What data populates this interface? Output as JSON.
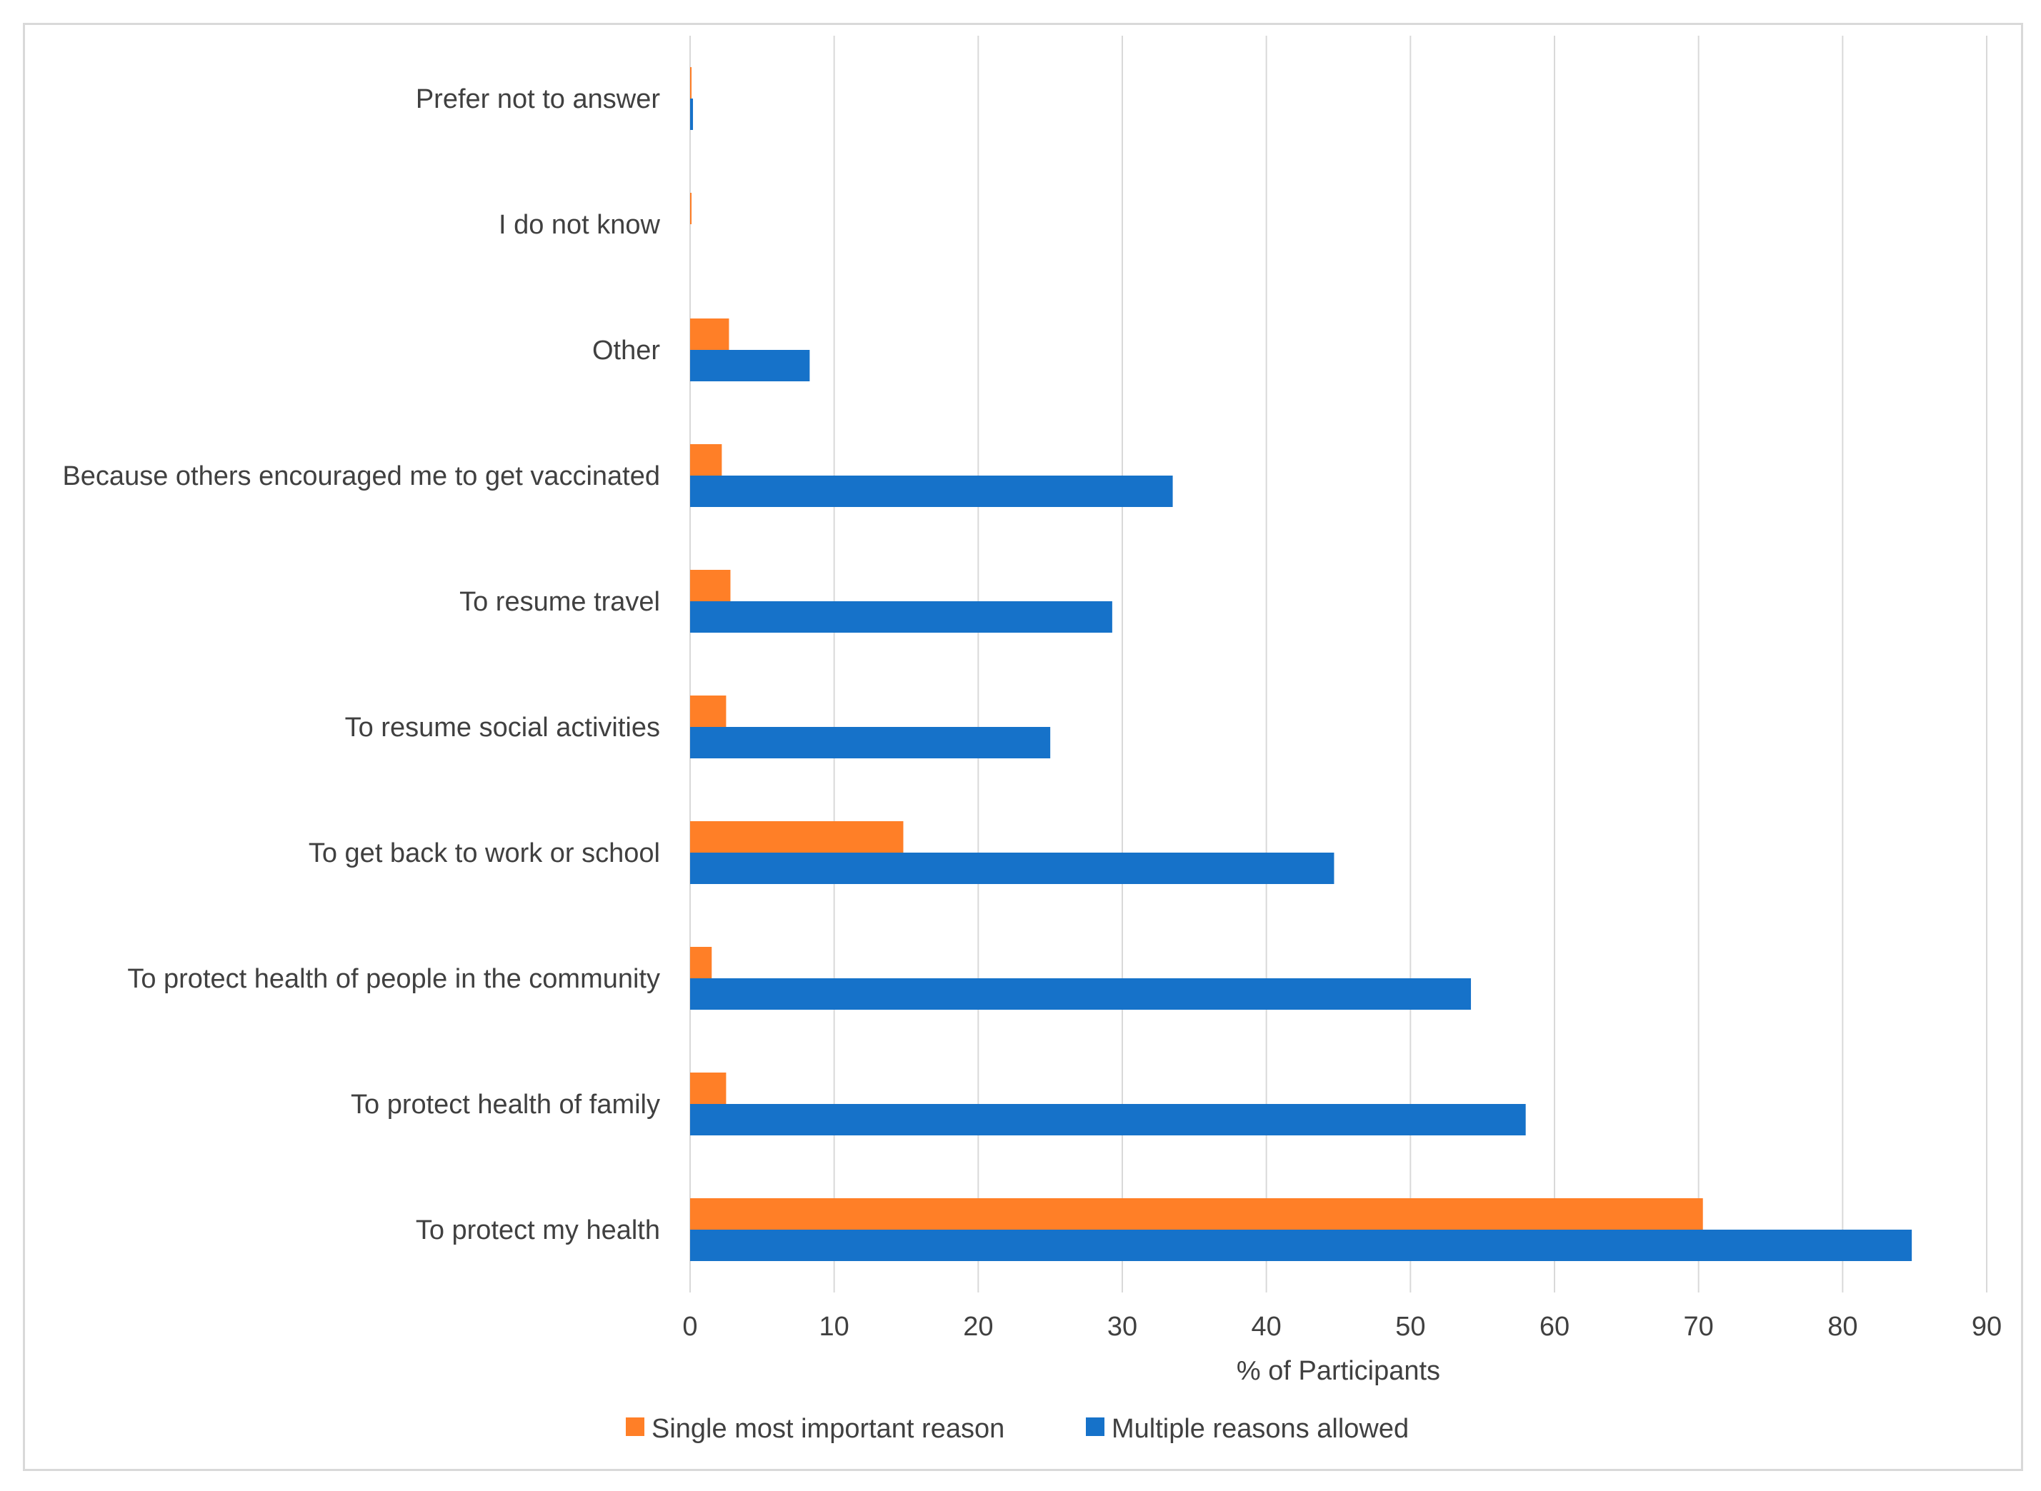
{
  "chart_data": {
    "type": "bar",
    "orientation": "horizontal",
    "categories": [
      "To protect my health",
      "To protect health of family",
      "To protect health of people in the community",
      "To get back to work or school",
      "To resume social activities",
      "To resume travel",
      "Because others encouraged me to get vaccinated",
      "Other",
      "I do not know",
      "Prefer not to answer"
    ],
    "series": [
      {
        "name": "Single most important reason",
        "color": "#FF7F27",
        "values": [
          70.3,
          2.5,
          1.5,
          14.8,
          2.5,
          2.8,
          2.2,
          2.7,
          0.1,
          0.1
        ]
      },
      {
        "name": "Multiple reasons allowed",
        "color": "#1672C9",
        "values": [
          84.8,
          58.0,
          54.2,
          44.7,
          25.0,
          29.3,
          33.5,
          8.3,
          0.0,
          0.2
        ]
      }
    ],
    "title": "",
    "xlabel": "% of Participants",
    "ylabel": "",
    "xlim": [
      0,
      90
    ],
    "xticks": [
      0,
      10,
      20,
      30,
      40,
      50,
      60,
      70,
      80,
      90
    ],
    "grid": "vertical",
    "legend_position": "bottom"
  }
}
